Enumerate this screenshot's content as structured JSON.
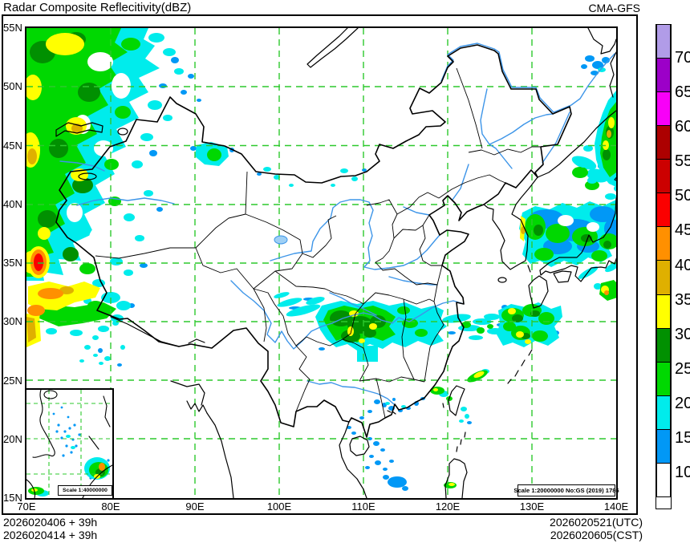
{
  "header": {
    "title": "Radar Composite Reflecitivity(dBZ)",
    "model": "CMA-GFS"
  },
  "axes": {
    "lat_labels": [
      "55N",
      "50N",
      "45N",
      "40N",
      "35N",
      "30N",
      "25N",
      "20N",
      "15N"
    ],
    "lon_labels": [
      "70E",
      "80E",
      "90E",
      "100E",
      "110E",
      "120E",
      "130E",
      "140E"
    ]
  },
  "colorbar": {
    "unit": "dBZ",
    "tick_labels": [
      "70",
      "65",
      "60",
      "55",
      "50",
      "45",
      "40",
      "35",
      "30",
      "25",
      "20",
      "15",
      "10"
    ],
    "colors_top_to_bottom": [
      "#b19ce8",
      "#9c00c8",
      "#f800f8",
      "#ac0000",
      "#cc0000",
      "#fb0000",
      "#ff9000",
      "#dfb000",
      "#ffff00",
      "#019001",
      "#00d801",
      "#00ecec",
      "#0198f6",
      "#ffffff"
    ]
  },
  "footer": {
    "run_utc": "2026020406 + 39h",
    "run_cst": "2026020414 + 39h",
    "valid_utc": "2026020521(UTC)",
    "valid_cst": "2026020605(CST)"
  },
  "map": {
    "scale_note": "Scale 1:20000000 No:GS (2019) 1786",
    "inset_scale_note": "Scale 1:40000000",
    "gridline_color": "#2dc92d"
  }
}
